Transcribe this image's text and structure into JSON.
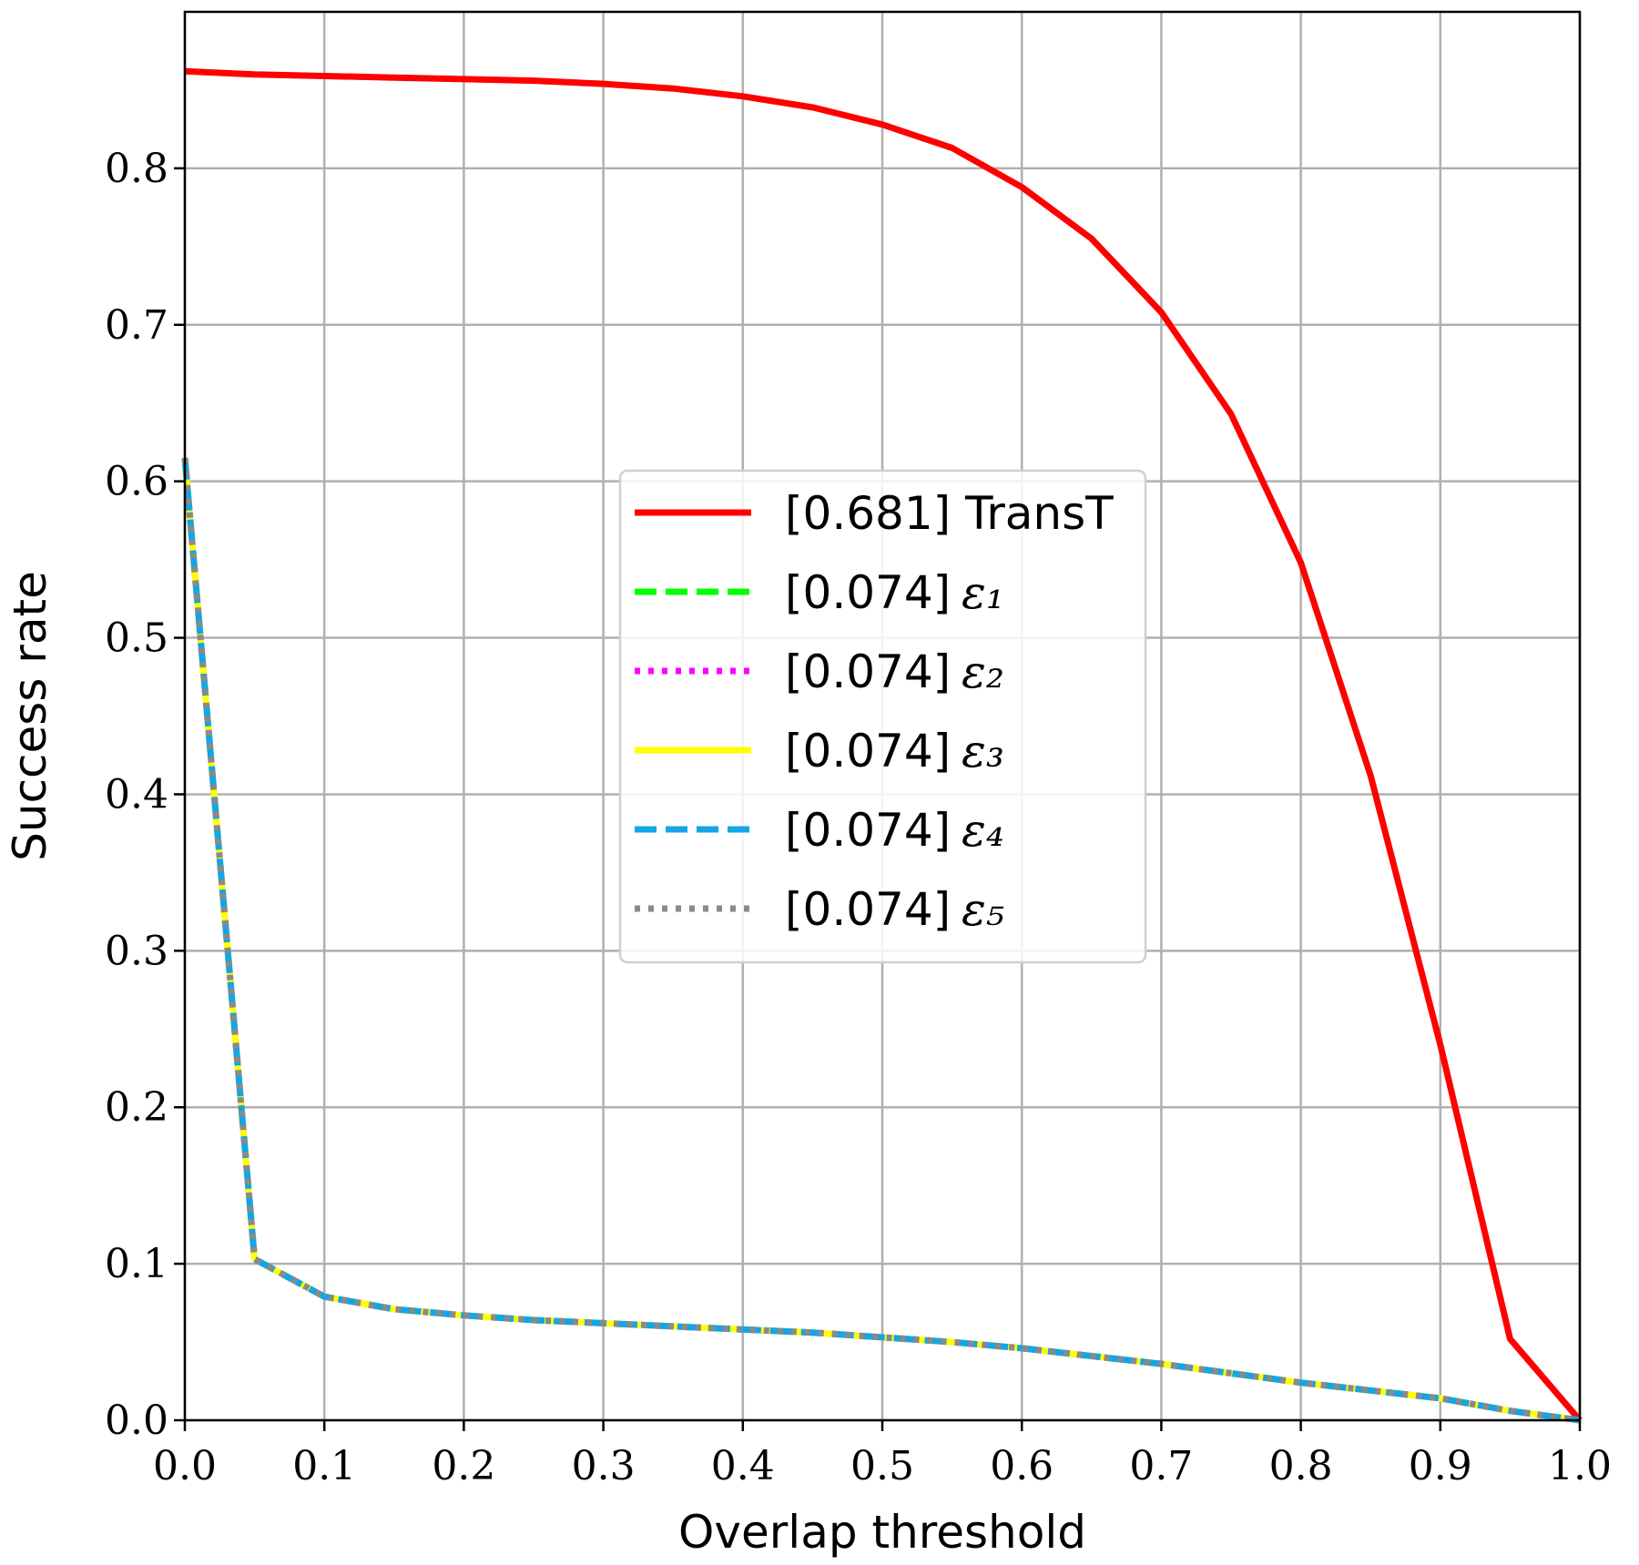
{
  "chart_data": {
    "type": "line",
    "title": "",
    "xlabel": "Overlap threshold",
    "ylabel": "Success rate",
    "xlim": [
      0.0,
      1.0
    ],
    "ylim": [
      0.0,
      0.9
    ],
    "xticks": [
      "0.0",
      "0.1",
      "0.2",
      "0.3",
      "0.4",
      "0.5",
      "0.6",
      "0.7",
      "0.8",
      "0.9",
      "1.0"
    ],
    "yticks": [
      "0.0",
      "0.1",
      "0.2",
      "0.3",
      "0.4",
      "0.5",
      "0.6",
      "0.7",
      "0.8"
    ],
    "grid": true,
    "legend_placement": "center",
    "x": [
      0.0,
      0.05,
      0.1,
      0.15,
      0.2,
      0.25,
      0.3,
      0.35,
      0.4,
      0.45,
      0.5,
      0.55,
      0.6,
      0.65,
      0.7,
      0.75,
      0.8,
      0.85,
      0.9,
      0.95,
      1.0
    ],
    "series": [
      {
        "name": "[0.681] TransT",
        "label_prefix": "[0.681] TransT",
        "label_sub": "",
        "color": "#ff0000",
        "style": "solid",
        "values": [
          0.862,
          0.86,
          0.859,
          0.858,
          0.857,
          0.856,
          0.854,
          0.851,
          0.846,
          0.839,
          0.828,
          0.813,
          0.788,
          0.755,
          0.708,
          0.643,
          0.548,
          0.412,
          0.24,
          0.052,
          0.0
        ]
      },
      {
        "name": "[0.074] ε1",
        "label_prefix": "[0.074]",
        "label_sub": "ε₁",
        "color": "#00ff00",
        "style": "dashed",
        "values": [
          0.615,
          0.103,
          0.079,
          0.071,
          0.067,
          0.064,
          0.062,
          0.06,
          0.058,
          0.056,
          0.053,
          0.05,
          0.046,
          0.041,
          0.036,
          0.03,
          0.024,
          0.019,
          0.014,
          0.006,
          0.0
        ]
      },
      {
        "name": "[0.074] ε2",
        "label_prefix": "[0.074]",
        "label_sub": "ε₂",
        "color": "#ff00ff",
        "style": "dotted",
        "values": [
          0.615,
          0.103,
          0.079,
          0.071,
          0.067,
          0.064,
          0.062,
          0.06,
          0.058,
          0.056,
          0.053,
          0.05,
          0.046,
          0.041,
          0.036,
          0.03,
          0.024,
          0.019,
          0.014,
          0.006,
          0.0
        ]
      },
      {
        "name": "[0.074] ε3",
        "label_prefix": "[0.074]",
        "label_sub": "ε₃",
        "color": "#ffff00",
        "style": "solid",
        "values": [
          0.615,
          0.103,
          0.079,
          0.071,
          0.067,
          0.064,
          0.062,
          0.06,
          0.058,
          0.056,
          0.053,
          0.05,
          0.046,
          0.041,
          0.036,
          0.03,
          0.024,
          0.019,
          0.014,
          0.006,
          0.0
        ]
      },
      {
        "name": "[0.074] ε4",
        "label_prefix": "[0.074]",
        "label_sub": "ε₄",
        "color": "#14a5e6",
        "style": "dashed",
        "values": [
          0.615,
          0.103,
          0.079,
          0.071,
          0.067,
          0.064,
          0.062,
          0.06,
          0.058,
          0.056,
          0.053,
          0.05,
          0.046,
          0.041,
          0.036,
          0.03,
          0.024,
          0.019,
          0.014,
          0.006,
          0.0
        ]
      },
      {
        "name": "[0.074] ε5",
        "label_prefix": "[0.074]",
        "label_sub": "ε₅",
        "color": "#8a8a8a",
        "style": "dotted",
        "values": [
          0.615,
          0.103,
          0.079,
          0.071,
          0.067,
          0.064,
          0.062,
          0.06,
          0.058,
          0.056,
          0.053,
          0.05,
          0.046,
          0.041,
          0.036,
          0.03,
          0.024,
          0.019,
          0.014,
          0.006,
          0.0
        ]
      }
    ]
  }
}
